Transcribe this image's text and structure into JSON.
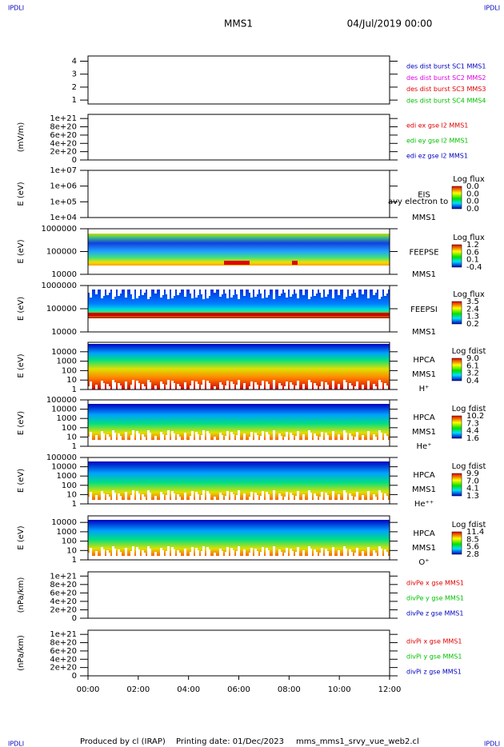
{
  "header": {
    "title": "MMS1",
    "date": "04/Jul/2019 00:00",
    "corner": "IPDLI"
  },
  "footer": {
    "produced": "Produced by cl (IRAP)",
    "printed": "Printing date: 01/Dec/2023",
    "script": "mms_mms1_srvy_vue_web2.cl"
  },
  "chart_data": [
    {
      "type": "line",
      "ylim": [
        0.7,
        4.4
      ],
      "yticks": [
        1,
        2,
        3,
        4
      ],
      "series": [
        {
          "name": "des dist burst SC1 MMS1",
          "color": "#0000c0"
        },
        {
          "name": "des dist burst SC2 MMS2",
          "color": "#e000e0"
        },
        {
          "name": "des dist burst SC3 MMS3",
          "color": "#e00000"
        },
        {
          "name": "des dist burst SC4 MMS4",
          "color": "#00c000"
        }
      ]
    },
    {
      "type": "line",
      "ylabel": "(mV/m)",
      "ylim": [
        0,
        1.1e+21
      ],
      "zero_line": true,
      "yticks": [
        {
          "value": 0,
          "label": "0"
        },
        {
          "value": 2e+20,
          "label": "2e+20"
        },
        {
          "value": 4e+20,
          "label": "4e+20"
        },
        {
          "value": 6e+20,
          "label": "6e+20"
        },
        {
          "value": 8e+20,
          "label": "8e+20"
        },
        {
          "value": 1e+21,
          "label": "1e+21"
        }
      ],
      "series": [
        {
          "name": "edi ex gse l2 MMS1",
          "color": "#e00000"
        },
        {
          "name": "edi ey gse l2 MMS1",
          "color": "#00c000"
        },
        {
          "name": "edi ez gse l2 MMS1",
          "color": "#0000c0"
        }
      ]
    },
    {
      "type": "spectrogram",
      "ylabel": "E (eV)",
      "log": true,
      "ylim": [
        10000,
        10000000
      ],
      "yticks": [
        {
          "value": 10000,
          "label": "1e+04"
        },
        {
          "value": 100000,
          "label": "1e+05"
        },
        {
          "value": 1000000,
          "label": "1e+06"
        },
        {
          "value": 10000000,
          "label": "1e+07"
        }
      ],
      "labels": [
        "EIS",
        "MMS1"
      ],
      "note": "avy electron to",
      "colorbar": {
        "title": "Log flux",
        "ticks": [
          "0.0",
          "0.0",
          "0.0",
          "0.0"
        ]
      }
    },
    {
      "type": "spectrogram",
      "ylabel": "E (eV)",
      "log": true,
      "ylim": [
        10000,
        1000000
      ],
      "yticks": [
        10000,
        100000,
        1000000
      ],
      "labels": [
        "FEEPSE",
        "MMS1"
      ],
      "colorbar": {
        "title": "Log flux",
        "ticks": [
          "1.2",
          "0.6",
          "0.1",
          "-0.4"
        ]
      }
    },
    {
      "type": "spectrogram",
      "ylabel": "E (eV)",
      "log": true,
      "ylim": [
        10000,
        1000000
      ],
      "yticks": [
        10000,
        100000,
        1000000
      ],
      "labels": [
        "FEEPSI",
        "MMS1"
      ],
      "colorbar": {
        "title": "Log flux",
        "ticks": [
          "3.5",
          "2.4",
          "1.3",
          "0.2"
        ]
      }
    },
    {
      "type": "spectrogram",
      "ylabel": "E (eV)",
      "log": true,
      "ylim": [
        1,
        100000
      ],
      "yticks": [
        1,
        10,
        100,
        1000,
        10000
      ],
      "labels": [
        "HPCA",
        "MMS1",
        "H⁺"
      ],
      "colorbar": {
        "title": "Log fdist",
        "ticks": [
          "9.0",
          "6.1",
          "3.2",
          "0.4"
        ]
      }
    },
    {
      "type": "spectrogram",
      "ylabel": "E (eV)",
      "log": true,
      "ylim": [
        1,
        100000
      ],
      "yticks": [
        1,
        10,
        100,
        1000,
        10000,
        100000
      ],
      "labels": [
        "HPCA",
        "MMS1",
        "He⁺"
      ],
      "colorbar": {
        "title": "Log fdist",
        "ticks": [
          "10.2",
          "7.3",
          "4.4",
          "1.6"
        ]
      }
    },
    {
      "type": "spectrogram",
      "ylabel": "E (eV)",
      "log": true,
      "ylim": [
        1,
        100000
      ],
      "yticks": [
        1,
        10,
        100,
        1000,
        10000,
        100000
      ],
      "labels": [
        "HPCA",
        "MMS1",
        "He⁺⁺"
      ],
      "colorbar": {
        "title": "Log fdist",
        "ticks": [
          "9.9",
          "7.0",
          "4.1",
          "1.3"
        ]
      }
    },
    {
      "type": "spectrogram",
      "ylabel": "E (eV)",
      "log": true,
      "ylim": [
        1,
        50000
      ],
      "yticks": [
        1,
        10,
        100,
        1000,
        10000
      ],
      "labels": [
        "HPCA",
        "MMS1",
        "O⁺"
      ],
      "colorbar": {
        "title": "Log fdist",
        "ticks": [
          "11.4",
          "8.5",
          "5.6",
          "2.8"
        ]
      }
    },
    {
      "type": "line",
      "ylabel": "(nPa/km)",
      "ylim": [
        0,
        1.1e+21
      ],
      "zero_line": true,
      "yticks": [
        {
          "value": 0,
          "label": "0"
        },
        {
          "value": 2e+20,
          "label": "2e+20"
        },
        {
          "value": 4e+20,
          "label": "4e+20"
        },
        {
          "value": 6e+20,
          "label": "6e+20"
        },
        {
          "value": 8e+20,
          "label": "8e+20"
        },
        {
          "value": 1e+21,
          "label": "1e+21"
        }
      ],
      "series": [
        {
          "name": "divPe x gse MMS1",
          "color": "#e00000"
        },
        {
          "name": "divPe y gse MMS1",
          "color": "#00c000"
        },
        {
          "name": "divPe z gse MMS1",
          "color": "#0000c0"
        }
      ]
    },
    {
      "type": "line",
      "ylabel": "(nPa/km)",
      "ylim": [
        0,
        1.1e+21
      ],
      "zero_line": true,
      "yticks": [
        {
          "value": 0,
          "label": "0"
        },
        {
          "value": 2e+20,
          "label": "2e+20"
        },
        {
          "value": 4e+20,
          "label": "4e+20"
        },
        {
          "value": 6e+20,
          "label": "6e+20"
        },
        {
          "value": 8e+20,
          "label": "8e+20"
        },
        {
          "value": 1e+21,
          "label": "1e+21"
        }
      ],
      "series": [
        {
          "name": "divPi x gse MMS1",
          "color": "#e00000"
        },
        {
          "name": "divPi y gse MMS1",
          "color": "#00c000"
        },
        {
          "name": "divPi z gse MMS1",
          "color": "#0000c0"
        }
      ],
      "xlim": [
        0,
        12
      ],
      "xticks": [
        {
          "value": 0,
          "label": "00:00"
        },
        {
          "value": 2,
          "label": "02:00"
        },
        {
          "value": 4,
          "label": "04:00"
        },
        {
          "value": 6,
          "label": "06:00"
        },
        {
          "value": 8,
          "label": "08:00"
        },
        {
          "value": 10,
          "label": "10:00"
        },
        {
          "value": 12,
          "label": "12:00"
        }
      ]
    }
  ]
}
